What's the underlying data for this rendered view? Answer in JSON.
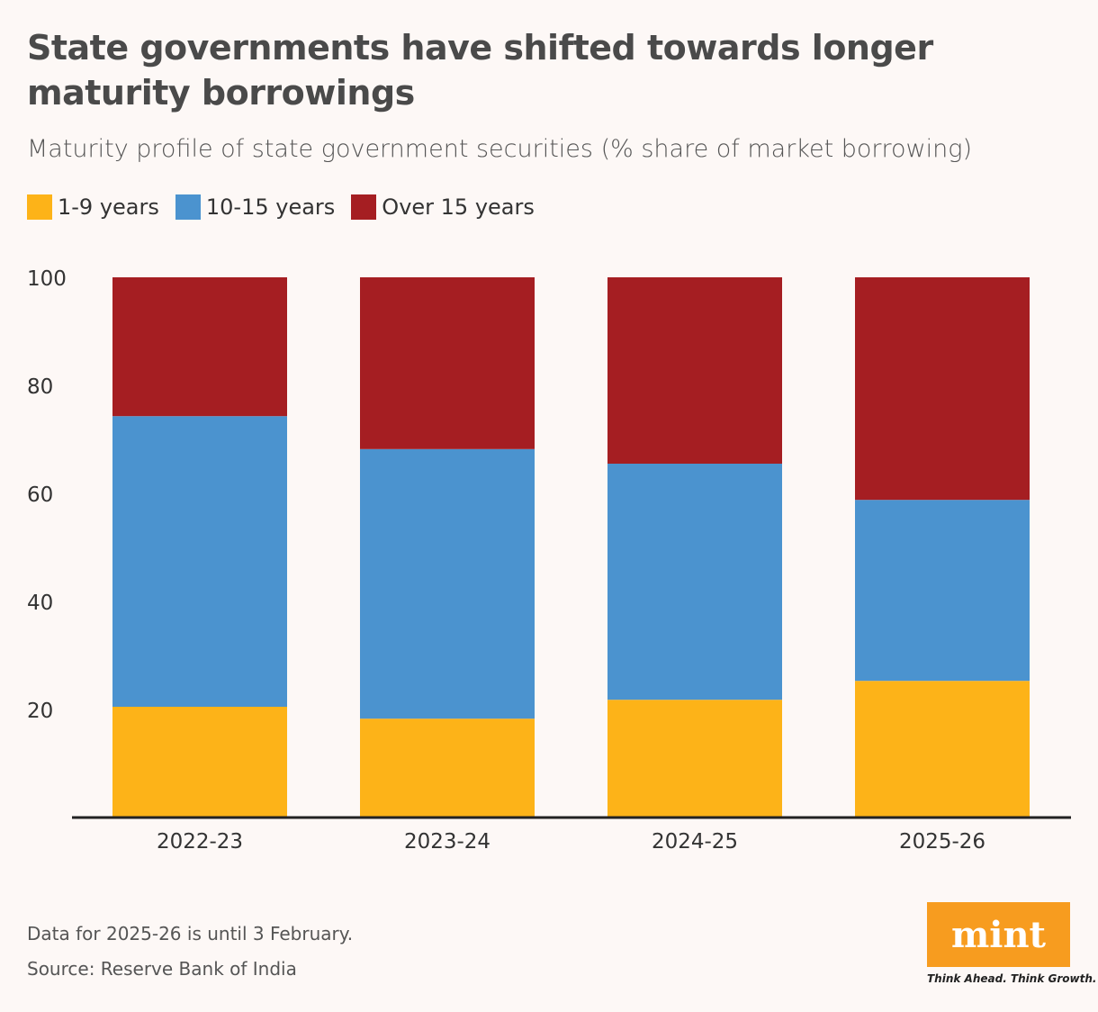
{
  "title": "State governments have shifted towards longer maturity borrowings",
  "subtitle": "Maturity profile of state government securities (% share of market borrowing)",
  "notes": [
    "Data for 2025-26 is until 3 February.",
    "Source: Reserve Bank of India"
  ],
  "logo": {
    "text": "mint",
    "tagline": "Think Ahead. Think Growth.",
    "color": "#f79c1f"
  },
  "chart_data": {
    "type": "bar",
    "stacked": true,
    "categories": [
      "2022-23",
      "2023-24",
      "2024-25",
      "2025-26"
    ],
    "series": [
      {
        "name": "1-9 years",
        "color": "#fdb318",
        "values": [
          20.5,
          18.3,
          21.8,
          25.3
        ]
      },
      {
        "name": "10-15 years",
        "color": "#4b93cf",
        "values": [
          53.8,
          49.9,
          43.7,
          33.5
        ]
      },
      {
        "name": "Over 15 years",
        "color": "#a51e22",
        "values": [
          25.7,
          31.8,
          34.5,
          41.2
        ]
      }
    ],
    "ylim": [
      0,
      100
    ],
    "yticks": [
      20,
      40,
      60,
      80,
      100
    ],
    "grid": false,
    "legend": "top-left"
  }
}
